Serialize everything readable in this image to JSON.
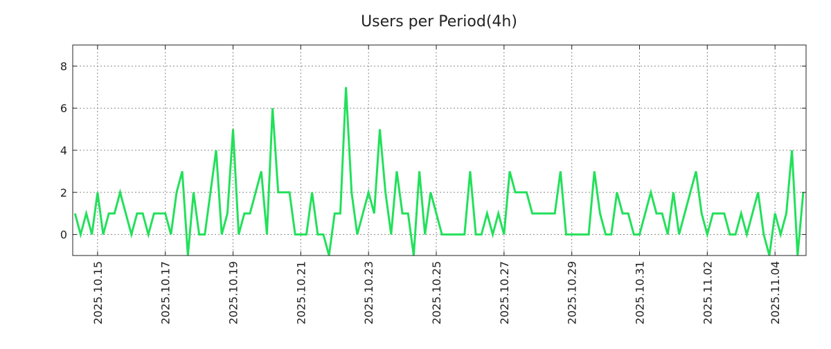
{
  "chart_data": {
    "type": "line",
    "title": "Users per Period(4h)",
    "xlabel": "",
    "ylabel": "",
    "ylim": [
      -1,
      9
    ],
    "xlim": [
      -0.4,
      129.5
    ],
    "grid": true,
    "y_ticks": [
      0,
      2,
      4,
      6,
      8
    ],
    "x_ticks": [
      {
        "label": "2025.10.15",
        "index": 4
      },
      {
        "label": "2025.10.17",
        "index": 16
      },
      {
        "label": "2025.10.19",
        "index": 28
      },
      {
        "label": "2025.10.21",
        "index": 40
      },
      {
        "label": "2025.10.23",
        "index": 52
      },
      {
        "label": "2025.10.25",
        "index": 64
      },
      {
        "label": "2025.10.27",
        "index": 76
      },
      {
        "label": "2025.10.29",
        "index": 88
      },
      {
        "label": "2025.10.31",
        "index": 100
      },
      {
        "label": "2025.11.02",
        "index": 112
      },
      {
        "label": "2025.11.04",
        "index": 124
      }
    ],
    "series": [
      {
        "name": "Users",
        "color": "#22e05a",
        "values": [
          1,
          0,
          1,
          0,
          2,
          0,
          1,
          1,
          2,
          1,
          0,
          1,
          1,
          0,
          1,
          1,
          1,
          0,
          2,
          3,
          -1,
          2,
          0,
          0,
          2,
          4,
          0,
          1,
          5,
          0,
          1,
          1,
          2,
          3,
          0,
          6,
          2,
          2,
          2,
          0,
          0,
          0,
          2,
          0,
          0,
          -1,
          1,
          1,
          7,
          2,
          0,
          1,
          2,
          1,
          5,
          2,
          0,
          3,
          1,
          1,
          -1,
          3,
          0,
          2,
          1,
          0,
          0,
          0,
          0,
          0,
          3,
          0,
          0,
          1,
          0,
          1,
          0,
          3,
          2,
          2,
          2,
          1,
          1,
          1,
          1,
          1,
          3,
          0,
          0,
          0,
          0,
          0,
          3,
          1,
          0,
          0,
          2,
          1,
          1,
          0,
          0,
          1,
          2,
          1,
          1,
          0,
          2,
          0,
          1,
          2,
          3,
          1,
          0,
          1,
          1,
          1,
          0,
          0,
          1,
          0,
          1,
          2,
          0,
          -1,
          1,
          0,
          1,
          4,
          -1,
          2
        ]
      }
    ]
  }
}
